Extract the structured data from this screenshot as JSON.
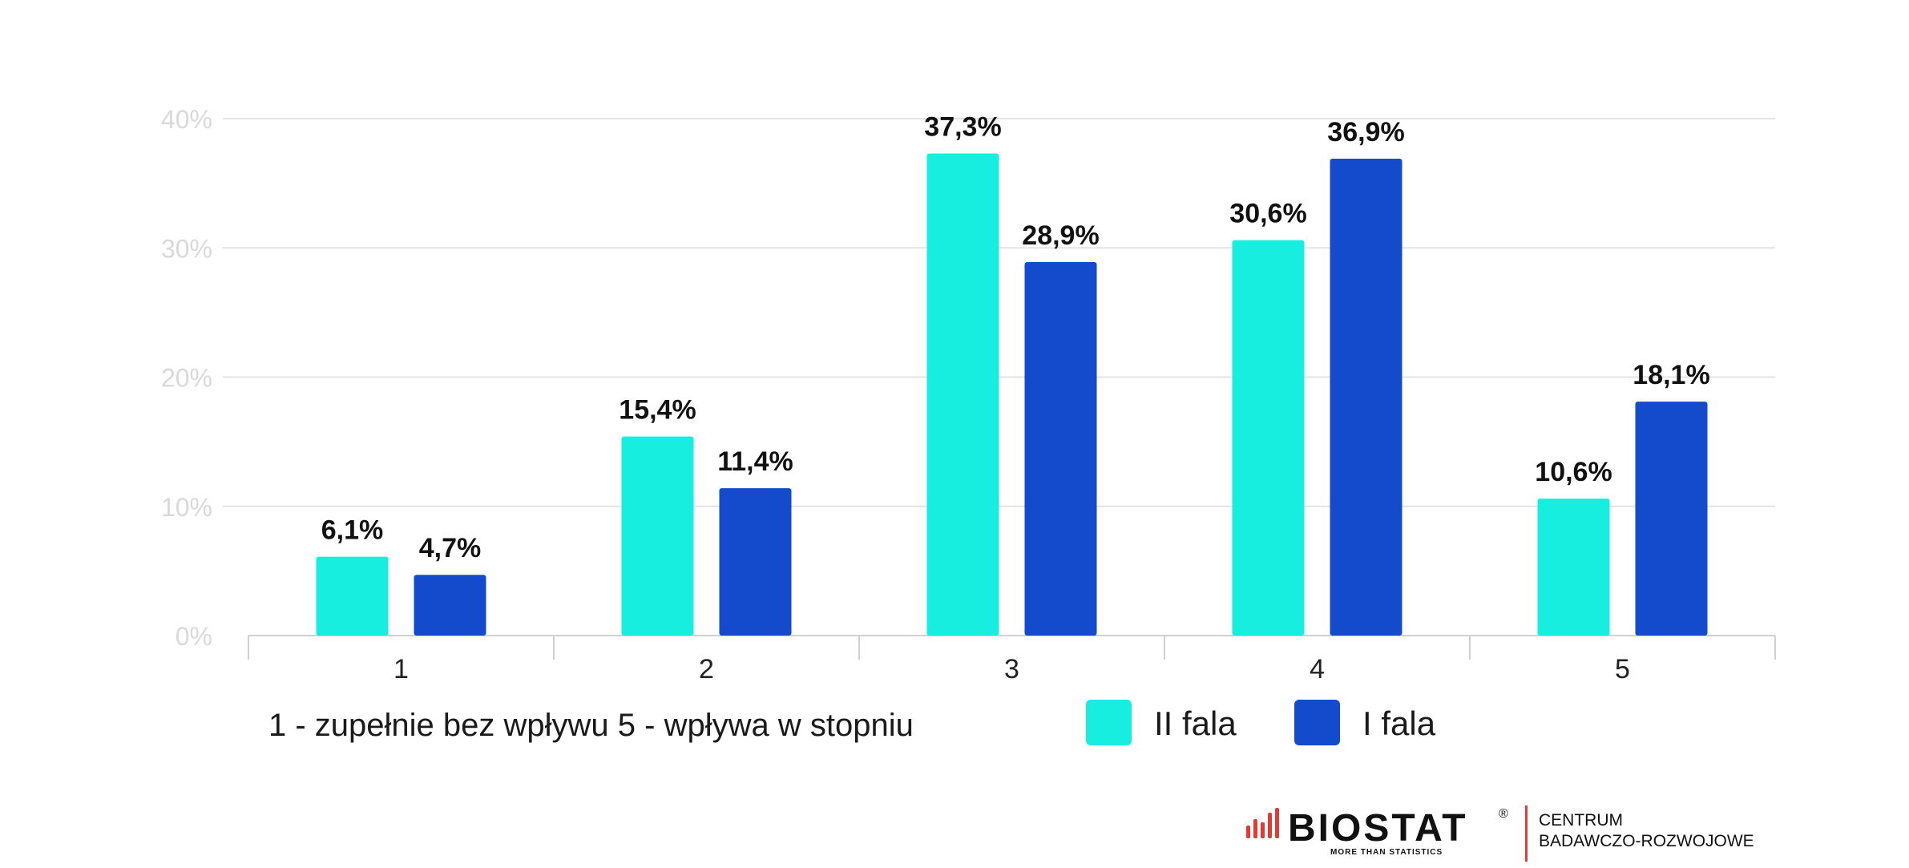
{
  "chart_data": {
    "type": "bar",
    "title": "",
    "xlabel": "",
    "ylabel": "",
    "categories": [
      "1",
      "2",
      "3",
      "4",
      "5"
    ],
    "series": [
      {
        "name": "II fala",
        "color": "#17EEE0",
        "values": [
          6.1,
          15.4,
          37.3,
          30.6,
          10.6
        ],
        "labels": [
          "6,1%",
          "15,4%",
          "37,3%",
          "30,6%",
          "10,6%"
        ]
      },
      {
        "name": "I fala",
        "color": "#134BCC",
        "values": [
          4.7,
          11.4,
          28.9,
          36.9,
          18.1
        ],
        "labels": [
          "4,7%",
          "11,4%",
          "28,9%",
          "36,9%",
          "18,1%"
        ]
      }
    ],
    "ylim": [
      0,
      40
    ],
    "yticks": [
      0,
      10,
      20,
      30,
      40
    ],
    "ytick_labels": [
      "0%",
      "10%",
      "20%",
      "30%",
      "40%"
    ],
    "grid": true,
    "legend_position": "bottom"
  },
  "note": "1 - zupełnie bez wpływu  5 - wpływa w stopniu",
  "logo": {
    "name": "BIOSTAT",
    "tagline": "MORE THAN STATISTICS",
    "registered": "®",
    "side_line1": "CENTRUM",
    "side_line2": "BADAWCZO-ROZWOJOWE",
    "accent_color": "#E53935"
  },
  "colors": {
    "grid": "#e3e3e3",
    "axis": "#d0d0d0"
  }
}
